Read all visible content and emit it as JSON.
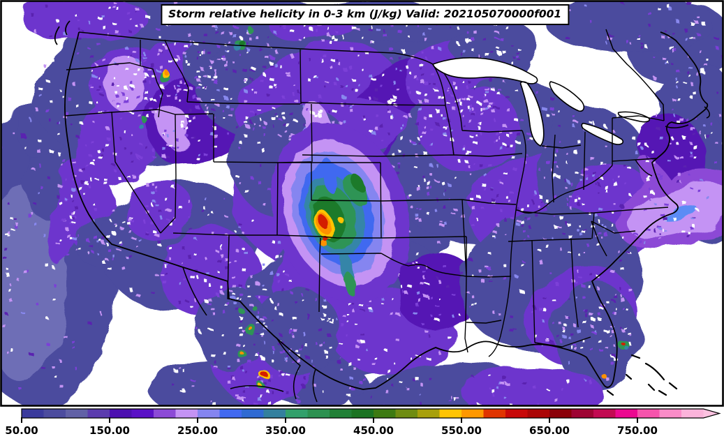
{
  "title": {
    "text": "Storm relative helicity in 0-3 km (J/kg) Valid: 202105070000f001"
  },
  "colorbar": {
    "min": 50,
    "interval": 25,
    "colors": [
      "#3a3a9c",
      "#4c4c9e",
      "#6161a6",
      "#5b3cae",
      "#4c0fb0",
      "#5a11c6",
      "#8c4ad6",
      "#c493f4",
      "#8585f0",
      "#4169f0",
      "#2f6ad2",
      "#33809e",
      "#32a06b",
      "#2c9150",
      "#218036",
      "#1b7322",
      "#3d7a12",
      "#6f8c12",
      "#a8a00c",
      "#ffc403",
      "#ff9800",
      "#e03400",
      "#c80808",
      "#ab0505",
      "#8b0008",
      "#9e0433",
      "#c20a52",
      "#ec0890",
      "#f653ac",
      "#fa8cc8",
      "#fbb3da"
    ],
    "extend_color": "#fcc2e0",
    "ticks": [
      {
        "value": 50,
        "label": "50.00"
      },
      {
        "value": 150,
        "label": "150.00"
      },
      {
        "value": 250,
        "label": "250.00"
      },
      {
        "value": 350,
        "label": "350.00"
      },
      {
        "value": 450,
        "label": "450.00"
      },
      {
        "value": 550,
        "label": "550.00"
      },
      {
        "value": 650,
        "label": "650.00"
      },
      {
        "value": 750,
        "label": "750.00"
      }
    ]
  },
  "chart_data": {
    "type": "heatmap",
    "title": "Storm relative helicity in 0-3 km (J/kg) Valid: 202105070000f001",
    "variable": "Storm relative helicity in 0-3 km",
    "units": "J/kg",
    "valid_time": "202105070000",
    "forecast_hour": "f001",
    "region": "Continental United States with adjacent Canada, Mexico, Pacific and Atlantic",
    "colorbar_tick_labels": [
      "50.00",
      "150.00",
      "250.00",
      "350.00",
      "450.00",
      "550.00",
      "650.00",
      "750.00"
    ],
    "scale": {
      "min": 50,
      "interval": 25,
      "extend": "max-arrow",
      "colors": [
        "#3a3a9c",
        "#4c4c9e",
        "#6161a6",
        "#5b3cae",
        "#4c0fb0",
        "#5a11c6",
        "#8c4ad6",
        "#c493f4",
        "#8585f0",
        "#4169f0",
        "#2f6ad2",
        "#33809e",
        "#32a06b",
        "#2c9150",
        "#218036",
        "#1b7322",
        "#3d7a12",
        "#6f8c12",
        "#a8a00c",
        "#ffc403",
        "#ff9800",
        "#e03400",
        "#c80808",
        "#ab0505",
        "#8b0008",
        "#9e0433",
        "#c20a52",
        "#ec0890",
        "#f653ac",
        "#fa8cc8",
        "#fbb3da"
      ]
    },
    "maxima": [
      {
        "region": "SE Colorado / SW Kansas / OK-TX panhandles",
        "peak_value_jkg": 650
      },
      {
        "region": "Northern Mexico (Coahuila)",
        "peak_value_jkg": 600
      },
      {
        "region": "Washington / Idaho border spot",
        "peak_value_jkg": 550
      },
      {
        "region": "SW Montana spot",
        "peak_value_jkg": 400
      },
      {
        "region": "South Florida / Atlantic coast spot",
        "peak_value_jkg": 600
      },
      {
        "region": "Atlantic offshore of Carolinas (light purple lobe)",
        "peak_value_jkg": 300
      }
    ],
    "background_field": "Widespread 50-150 J/kg (slate-purple speckled field) over most of the domain; white areas below 50 J/kg"
  },
  "map": {
    "background": "#ffffff",
    "palette": {
      "slate": "#4b4b9e",
      "slateDark": "#3a3a9a",
      "slateLight": "#6e6eb6",
      "purple": "#6d35cd",
      "violet": "#5517b4",
      "medpurple": "#8c4ad6",
      "lavender": "#c493f4",
      "periwinkle": "#8585f0",
      "blue": "#4169f0",
      "blueLight": "#5b8cf5",
      "teal": "#3585a8",
      "green": "#2e9455",
      "dgreen": "#1d7a2b",
      "yellow": "#ffc403",
      "orange": "#ff9100",
      "red": "#d41f00"
    },
    "speckle_palette": [
      {
        "c": "#ffffff",
        "w": 0.32
      },
      {
        "c": "#c493f4",
        "w": 0.23
      },
      {
        "c": "#7b40d8",
        "w": 0.2
      },
      {
        "c": "#5a22b0",
        "w": 0.15
      },
      {
        "c": "#8888ee",
        "w": 0.1
      }
    ],
    "regions": [
      [
        55,
        370,
        115,
        215,
        0,
        "slate",
        50
      ],
      [
        35,
        410,
        62,
        140,
        0,
        "slateLight",
        25
      ],
      [
        85,
        255,
        48,
        65,
        15,
        "slate",
        15
      ],
      [
        95,
        320,
        20,
        60,
        15,
        "purple",
        10
      ],
      [
        60,
        190,
        35,
        40,
        0,
        "slate",
        12
      ],
      [
        225,
        125,
        178,
        108,
        -8,
        "slate",
        120
      ],
      [
        185,
        120,
        60,
        55,
        0,
        "purple",
        40
      ],
      [
        255,
        95,
        55,
        40,
        -10,
        "purple",
        30
      ],
      [
        290,
        170,
        85,
        62,
        -20,
        "violet",
        35
      ],
      [
        160,
        205,
        55,
        65,
        10,
        "purple",
        30
      ],
      [
        180,
        120,
        32,
        42,
        -10,
        "lavender",
        18
      ],
      [
        330,
        85,
        70,
        48,
        -15,
        "slate",
        30
      ],
      [
        250,
        182,
        22,
        30,
        -15,
        "lavender",
        12
      ],
      [
        125,
        295,
        42,
        72,
        -15,
        "purple",
        28
      ],
      [
        158,
        348,
        48,
        36,
        -20,
        "slate",
        20
      ],
      [
        255,
        350,
        112,
        92,
        -10,
        "slate",
        60
      ],
      [
        300,
        392,
        72,
        62,
        -10,
        "purple",
        40
      ],
      [
        228,
        302,
        50,
        46,
        0,
        "purple",
        22
      ],
      [
        520,
        115,
        238,
        102,
        -5,
        "slate",
        140
      ],
      [
        455,
        140,
        120,
        72,
        -15,
        "purple",
        55
      ],
      [
        590,
        150,
        92,
        62,
        -20,
        "violet",
        35
      ],
      [
        660,
        110,
        82,
        56,
        -10,
        "purple",
        40
      ],
      [
        705,
        62,
        62,
        40,
        0,
        "slate",
        25
      ],
      [
        480,
        262,
        152,
        122,
        -15,
        "purple",
        70
      ],
      [
        420,
        232,
        92,
        82,
        0,
        "slate",
        35
      ],
      [
        565,
        300,
        92,
        92,
        0,
        "slate",
        45
      ],
      [
        605,
        250,
        60,
        70,
        -20,
        "violet",
        25
      ],
      [
        500,
        432,
        152,
        102,
        -5,
        "slate",
        90
      ],
      [
        470,
        402,
        82,
        72,
        -20,
        "purple",
        45
      ],
      [
        560,
        472,
        92,
        62,
        0,
        "purple",
        30
      ],
      [
        628,
        420,
        60,
        55,
        -15,
        "violet",
        20
      ],
      [
        705,
        232,
        152,
        118,
        -10,
        "slate",
        110
      ],
      [
        760,
        292,
        92,
        72,
        -25,
        "purple",
        45
      ],
      [
        672,
        182,
        72,
        62,
        0,
        "purple",
        35
      ],
      [
        852,
        252,
        82,
        102,
        -10,
        "slate",
        45
      ],
      [
        880,
        302,
        62,
        72,
        -20,
        "purple",
        28
      ],
      [
        790,
        402,
        132,
        102,
        -10,
        "slate",
        80
      ],
      [
        832,
        452,
        82,
        72,
        -15,
        "purple",
        35
      ],
      [
        855,
        482,
        62,
        78,
        -10,
        "slate",
        30
      ],
      [
        975,
        65,
        78,
        62,
        0,
        "slate",
        35
      ],
      [
        1002,
        152,
        52,
        62,
        0,
        "slate",
        18
      ],
      [
        992,
        238,
        58,
        112,
        -15,
        "slate",
        35
      ],
      [
        962,
        215,
        45,
        62,
        -30,
        "violet",
        18
      ],
      [
        940,
        258,
        16,
        42,
        -35,
        "medpurple",
        8
      ],
      [
        930,
        322,
        32,
        27,
        0,
        "purple",
        12
      ],
      [
        975,
        300,
        96,
        52,
        -18,
        "medpurple",
        0
      ],
      [
        975,
        303,
        78,
        37,
        -18,
        "lavender",
        10
      ],
      [
        972,
        304,
        26,
        9,
        -18,
        "blueLight",
        0
      ],
      [
        622,
        560,
        122,
        40,
        -5,
        "slate",
        28
      ],
      [
        762,
        562,
        102,
        36,
        0,
        "purple",
        22
      ],
      [
        302,
        556,
        92,
        40,
        0,
        "slate",
        25
      ],
      [
        452,
        548,
        72,
        36,
        0,
        "slate",
        20
      ],
      [
        372,
        502,
        72,
        82,
        -15,
        "purple",
        50
      ],
      [
        422,
        472,
        62,
        62,
        -15,
        "slate",
        30
      ],
      [
        332,
        472,
        52,
        62,
        0,
        "slate",
        25
      ],
      [
        302,
        27,
        182,
        36,
        0,
        "slate",
        40
      ],
      [
        122,
        27,
        92,
        32,
        0,
        "purple",
        25
      ],
      [
        552,
        32,
        122,
        32,
        0,
        "slate",
        30
      ],
      [
        902,
        32,
        122,
        42,
        0,
        "slate",
        30
      ],
      [
        442,
        32,
        62,
        27,
        0,
        "purple",
        15
      ],
      [
        460,
        190,
        20,
        48,
        -20,
        "lavender",
        10
      ],
      [
        445,
        210,
        12,
        32,
        -18,
        "periwinkle",
        6
      ],
      [
        470,
        235,
        16,
        40,
        -15,
        "periwinkle",
        0
      ]
    ],
    "spots": [
      [
        488,
        305,
        96,
        132,
        -18,
        "purple"
      ],
      [
        486,
        305,
        77,
        108,
        -18,
        "lavender"
      ],
      [
        484,
        306,
        63,
        91,
        -18,
        "periwinkle"
      ],
      [
        482,
        307,
        51,
        75,
        -18,
        "blue"
      ],
      [
        480,
        309,
        41,
        59,
        -18,
        "teal"
      ],
      [
        477,
        311,
        32,
        47,
        -18,
        "green"
      ],
      [
        471,
        314,
        22,
        34,
        -20,
        "dgreen"
      ],
      [
        464,
        321,
        13,
        22,
        -24,
        "yellow"
      ],
      [
        463,
        320,
        9.5,
        17,
        -24,
        "orange"
      ],
      [
        462,
        317,
        6,
        12,
        -26,
        "red"
      ],
      [
        472,
        252,
        10,
        26,
        -12,
        "blue"
      ],
      [
        508,
        272,
        13,
        26,
        -30,
        "green"
      ],
      [
        512,
        262,
        8,
        14,
        -30,
        "dgreen"
      ],
      [
        497,
        385,
        9,
        24,
        -15,
        "teal"
      ],
      [
        502,
        408,
        8,
        18,
        -15,
        "green"
      ],
      [
        489,
        316,
        4,
        4,
        0,
        "yellow"
      ],
      [
        464,
        349,
        5,
        5,
        0,
        "orange"
      ],
      [
        466,
        342,
        3.5,
        3.5,
        0,
        "red"
      ],
      [
        345,
        64,
        7,
        9,
        -20,
        "green"
      ],
      [
        346,
        61,
        4,
        5,
        -20,
        "dgreen"
      ],
      [
        358,
        43,
        4,
        5,
        0,
        "green"
      ],
      [
        341,
        69,
        5,
        5,
        0,
        "teal"
      ],
      [
        235,
        110,
        7,
        9,
        0,
        "green"
      ],
      [
        236,
        105,
        5,
        6,
        0,
        "yellow"
      ],
      [
        237,
        103,
        3,
        4,
        0,
        "orange"
      ],
      [
        207,
        172,
        4,
        5,
        0,
        "green"
      ],
      [
        203,
        182,
        3,
        4,
        0,
        "teal"
      ],
      [
        359,
        472,
        8,
        8,
        0,
        "green"
      ],
      [
        359,
        471,
        3,
        3,
        0,
        "orange"
      ],
      [
        347,
        508,
        6,
        6,
        0,
        "green"
      ],
      [
        347,
        507,
        2.5,
        2.5,
        0,
        "orange"
      ],
      [
        378,
        536,
        7,
        6,
        0,
        "yellow"
      ],
      [
        378,
        536,
        4.5,
        4,
        0,
        "red"
      ],
      [
        374,
        553,
        5,
        5,
        0,
        "green"
      ],
      [
        373,
        553,
        2.5,
        2.5,
        0,
        "yellow"
      ],
      [
        344,
        444,
        4,
        4,
        0,
        "green"
      ],
      [
        365,
        442,
        3.5,
        3.5,
        0,
        "green"
      ],
      [
        893,
        494,
        8,
        7,
        0,
        "green"
      ],
      [
        892,
        492,
        2.5,
        2.5,
        0,
        "red"
      ],
      [
        897,
        498,
        3,
        3,
        0,
        "teal"
      ],
      [
        865,
        539,
        3.5,
        3.5,
        0,
        "orange"
      ]
    ]
  }
}
